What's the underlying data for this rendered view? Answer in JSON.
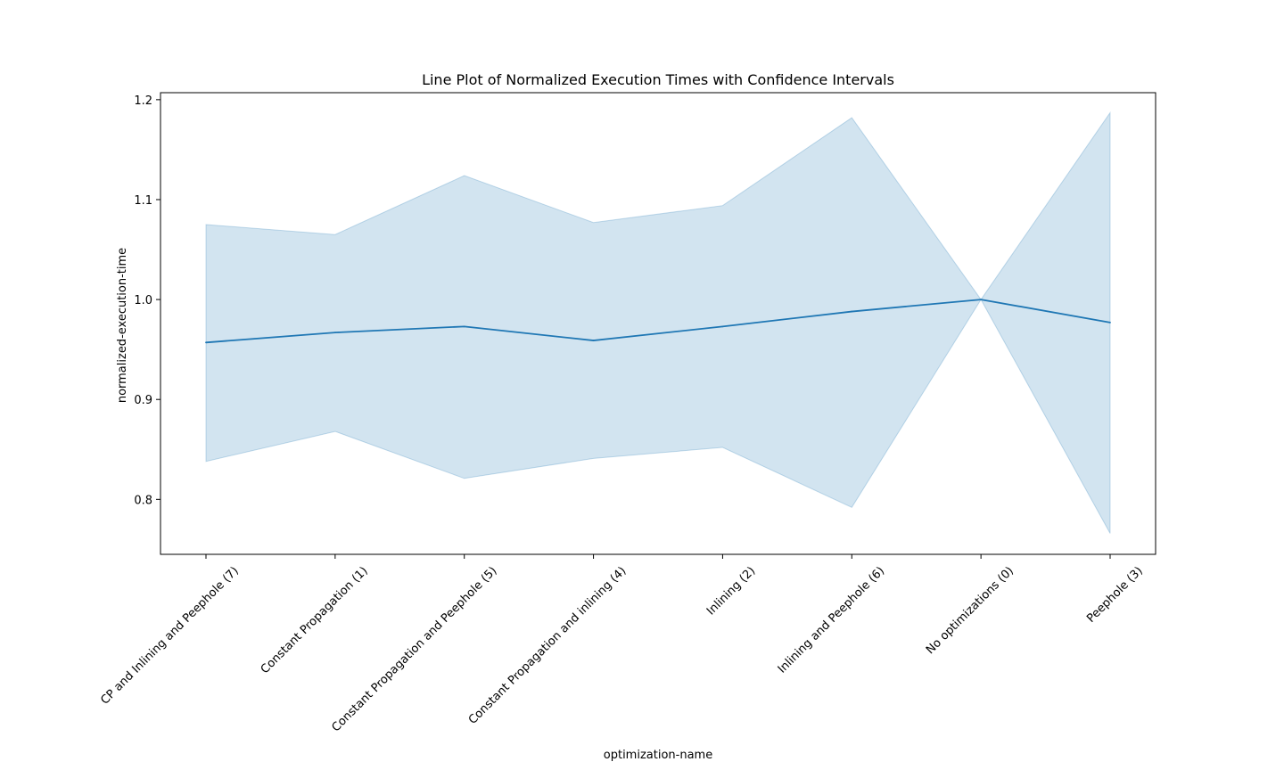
{
  "chart_data": {
    "type": "line",
    "title": "Line Plot of Normalized Execution Times with Confidence Intervals",
    "xlabel": "optimization-name",
    "ylabel": "normalized-execution-time",
    "categories": [
      "CP and Inlining and Peephole (7)",
      "Constant Propagation (1)",
      "Constant Propagation and Peephole (5)",
      "Constant Propagation and inlining (4)",
      "Inlining (2)",
      "Inlining and Peephole (6)",
      "No optimizations (0)",
      "Peephole (3)"
    ],
    "series": [
      {
        "values": [
          0.957,
          0.967,
          0.973,
          0.959,
          0.973,
          0.988,
          1.0,
          0.977
        ],
        "ci_lower": [
          0.838,
          0.868,
          0.821,
          0.841,
          0.852,
          0.792,
          1.0,
          0.766
        ],
        "ci_upper": [
          1.075,
          1.065,
          1.124,
          1.077,
          1.094,
          1.182,
          1.0,
          1.187
        ],
        "color": "#1f77b4"
      }
    ],
    "ylim": [
      0.745,
      1.207
    ],
    "yticks": [
      0.8,
      0.9,
      1.0,
      1.1,
      1.2
    ],
    "ytick_labels": [
      "0.8",
      "0.9",
      "1.0",
      "1.1",
      "1.2"
    ],
    "grid": false,
    "legend": "none",
    "band_color": "#1f77b4",
    "band_opacity": 0.2
  }
}
